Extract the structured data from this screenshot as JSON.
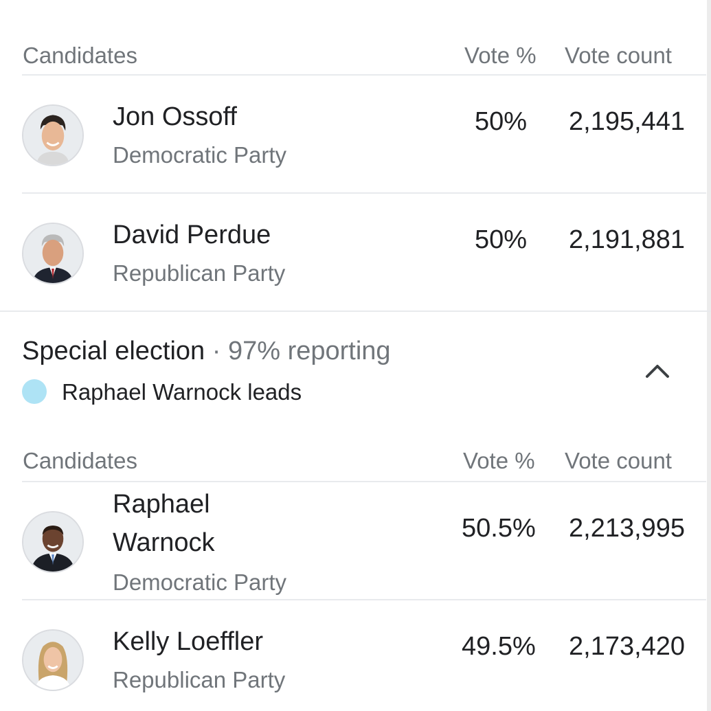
{
  "race1": {
    "headers": {
      "candidates": "Candidates",
      "vote_pct": "Vote %",
      "vote_count": "Vote count"
    },
    "candidates": [
      {
        "name": "Jon Ossoff",
        "party": "Democratic Party",
        "vote_pct": "50%",
        "vote_count": "2,195,441",
        "avatar": "candidate-photo"
      },
      {
        "name": "David Perdue",
        "party": "Republican Party",
        "vote_pct": "50%",
        "vote_count": "2,191,881",
        "avatar": "candidate-photo"
      }
    ]
  },
  "special": {
    "title": "Special election",
    "separator": " · ",
    "reporting": "97% reporting",
    "leader_text": "Raphael Warnock leads",
    "leader_color": "#aee3f5",
    "toggle_icon": "chevron-up-icon"
  },
  "race2": {
    "headers": {
      "candidates": "Candidates",
      "vote_pct": "Vote %",
      "vote_count": "Vote count"
    },
    "candidates": [
      {
        "name_line1": "Raphael",
        "name_line2": "Warnock",
        "party": "Democratic Party",
        "vote_pct": "50.5%",
        "vote_count": "2,213,995",
        "avatar": "candidate-photo"
      },
      {
        "name": "Kelly Loeffler",
        "party": "Republican Party",
        "vote_pct": "49.5%",
        "vote_count": "2,173,420",
        "avatar": "candidate-photo"
      }
    ]
  },
  "colors": {
    "primary_text": "#202124",
    "secondary_text": "#70757a",
    "divider": "#e8eaed"
  }
}
